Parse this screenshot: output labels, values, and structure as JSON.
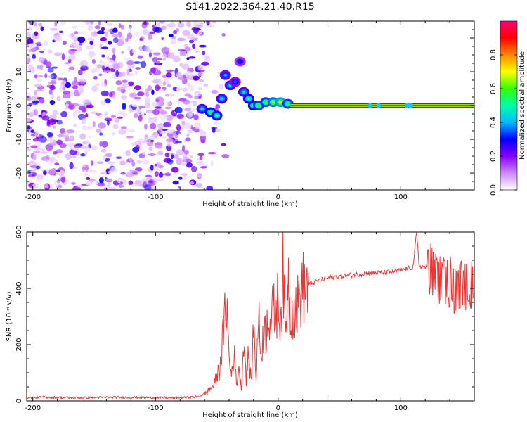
{
  "title": "S141.2022.364.21.40.R15",
  "chart_data": [
    {
      "type": "heatmap",
      "xlabel": "Height of straight line (km)",
      "ylabel": "Frequency (Hz)",
      "xlim": [
        -205,
        160
      ],
      "ylim": [
        -25,
        25
      ],
      "xticks": [
        -200,
        -100,
        0,
        100
      ],
      "yticks": [
        -20,
        -10,
        0,
        10,
        20
      ],
      "colorbar": {
        "label": "Normalized spectral amplitude",
        "range": [
          0,
          1
        ],
        "ticks": [
          "0.0",
          "0.2",
          "0.4",
          "0.6",
          "0.8"
        ],
        "colors": [
          "#ffffff",
          "#cc88ff",
          "#8800ff",
          "#0000ff",
          "#00bbff",
          "#00ffaa",
          "#33ff00",
          "#ffff00",
          "#ff8800",
          "#ff0000",
          "#ff0077"
        ]
      },
      "noise_region_km": [
        -205,
        -60
      ],
      "signal_track": [
        {
          "x": -62,
          "y": -1,
          "v": 0.45
        },
        {
          "x": -55,
          "y": -2,
          "v": 0.55
        },
        {
          "x": -50,
          "y": -3,
          "v": 0.5
        },
        {
          "x": -46,
          "y": 2,
          "v": 0.45
        },
        {
          "x": -43,
          "y": 9,
          "v": 0.4
        },
        {
          "x": -39,
          "y": 6,
          "v": 0.45
        },
        {
          "x": -35,
          "y": 7,
          "v": 0.35
        },
        {
          "x": -31,
          "y": 13,
          "v": 0.3
        },
        {
          "x": -28,
          "y": 4,
          "v": 0.45
        },
        {
          "x": -24,
          "y": 2,
          "v": 0.5
        },
        {
          "x": -20,
          "y": 0,
          "v": 0.55
        },
        {
          "x": -16,
          "y": 0,
          "v": 0.6
        },
        {
          "x": -10,
          "y": 1,
          "v": 0.6
        },
        {
          "x": -4,
          "y": 1,
          "v": 0.65
        },
        {
          "x": 2,
          "y": 1,
          "v": 0.7
        },
        {
          "x": 8,
          "y": 0.5,
          "v": 0.6
        }
      ],
      "carrier_line": {
        "x_start": 10,
        "x_end": 160,
        "y": 0
      }
    },
    {
      "type": "line",
      "xlabel": "Height of straight line (km)",
      "ylabel": "SNR (10 * v/v)",
      "xlim": [
        -205,
        160
      ],
      "ylim": [
        0,
        600
      ],
      "xticks": [
        -200,
        -100,
        0,
        100
      ],
      "yticks": [
        0,
        200,
        400,
        600
      ],
      "series": [
        {
          "color": "#ee3333",
          "x": [
            -205,
            -190,
            -170,
            -150,
            -130,
            -110,
            -90,
            -75,
            -65,
            -58,
            -52,
            -48,
            -45,
            -42,
            -40,
            -38,
            -36,
            -34,
            -32,
            -30,
            -28,
            -26,
            -24,
            -22,
            -20,
            -18,
            -16,
            -14,
            -12,
            -10,
            -8,
            -6,
            -4,
            -2,
            0,
            2,
            4,
            6,
            8,
            10,
            12,
            14,
            16,
            18,
            20,
            24,
            28,
            35,
            45,
            55,
            65,
            75,
            85,
            95,
            105,
            110,
            113,
            115,
            120,
            125,
            130,
            135,
            140,
            145,
            150,
            155,
            160
          ],
          "values": [
            12,
            13,
            11,
            12,
            13,
            12,
            11,
            12,
            15,
            30,
            60,
            110,
            220,
            360,
            150,
            90,
            180,
            60,
            120,
            40,
            230,
            80,
            170,
            60,
            270,
            90,
            300,
            160,
            250,
            240,
            330,
            280,
            320,
            300,
            360,
            300,
            450,
            220,
            460,
            320,
            330,
            320,
            340,
            380,
            400,
            410,
            420,
            430,
            440,
            445,
            450,
            455,
            455,
            460,
            470,
            475,
            600,
            480,
            475,
            470,
            430,
            410,
            420,
            405,
            410,
            420,
            420
          ]
        }
      ]
    }
  ]
}
